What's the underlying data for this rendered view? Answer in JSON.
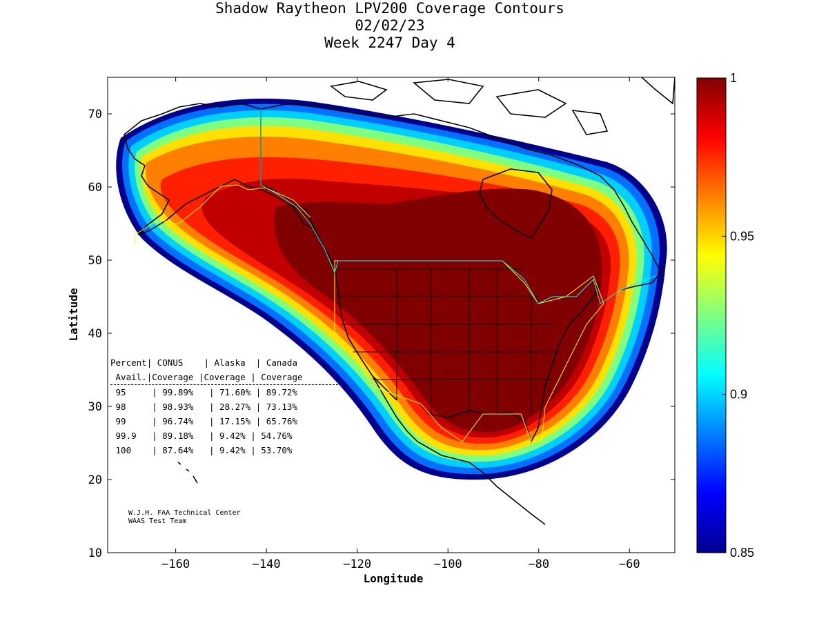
{
  "title": {
    "line1": "Shadow Raytheon LPV200 Coverage Contours",
    "line2": "02/02/23",
    "line3": "Week 2247 Day 4"
  },
  "axes": {
    "xlabel": "Longitude",
    "ylabel": "Latitude",
    "xlim": [
      -175,
      -50
    ],
    "ylim": [
      10,
      75
    ],
    "xticks": [
      -160,
      -140,
      -120,
      -100,
      -80,
      -60
    ],
    "yticks": [
      10,
      20,
      30,
      40,
      50,
      60,
      70
    ]
  },
  "colorbar": {
    "range": [
      0.85,
      1
    ],
    "labels": [
      "1",
      "0.95",
      "0.9",
      "0.85"
    ],
    "label_values": [
      1,
      0.95,
      0.9,
      0.85
    ],
    "colormap": "jet"
  },
  "table": {
    "header1": [
      "Percent",
      "CONUS",
      "Alaska",
      "Canada"
    ],
    "header2": [
      "Avail.",
      "Coverage",
      "Coverage",
      "Coverage"
    ],
    "rows": [
      {
        "percent": "95",
        "conus": "99.89%",
        "alaska": "71.60%",
        "canada": "89.72%"
      },
      {
        "percent": "98",
        "conus": "98.93%",
        "alaska": "28.27%",
        "canada": "73.13%"
      },
      {
        "percent": "99",
        "conus": "96.74%",
        "alaska": "17.15%",
        "canada": "65.76%"
      },
      {
        "percent": "99.9",
        "conus": "89.18%",
        "alaska": "9.42%",
        "canada": "54.76%"
      },
      {
        "percent": "100",
        "conus": "87.64%",
        "alaska": "9.42%",
        "canada": "53.70%"
      }
    ]
  },
  "credit": {
    "line1": "W.J.H. FAA Technical Center",
    "line2": "WAAS Test Team"
  },
  "colors": {
    "max": "#800000",
    "high": "#ff0000",
    "mid": "#ffff00",
    "low": "#00ffff",
    "min": "#00008f"
  }
}
